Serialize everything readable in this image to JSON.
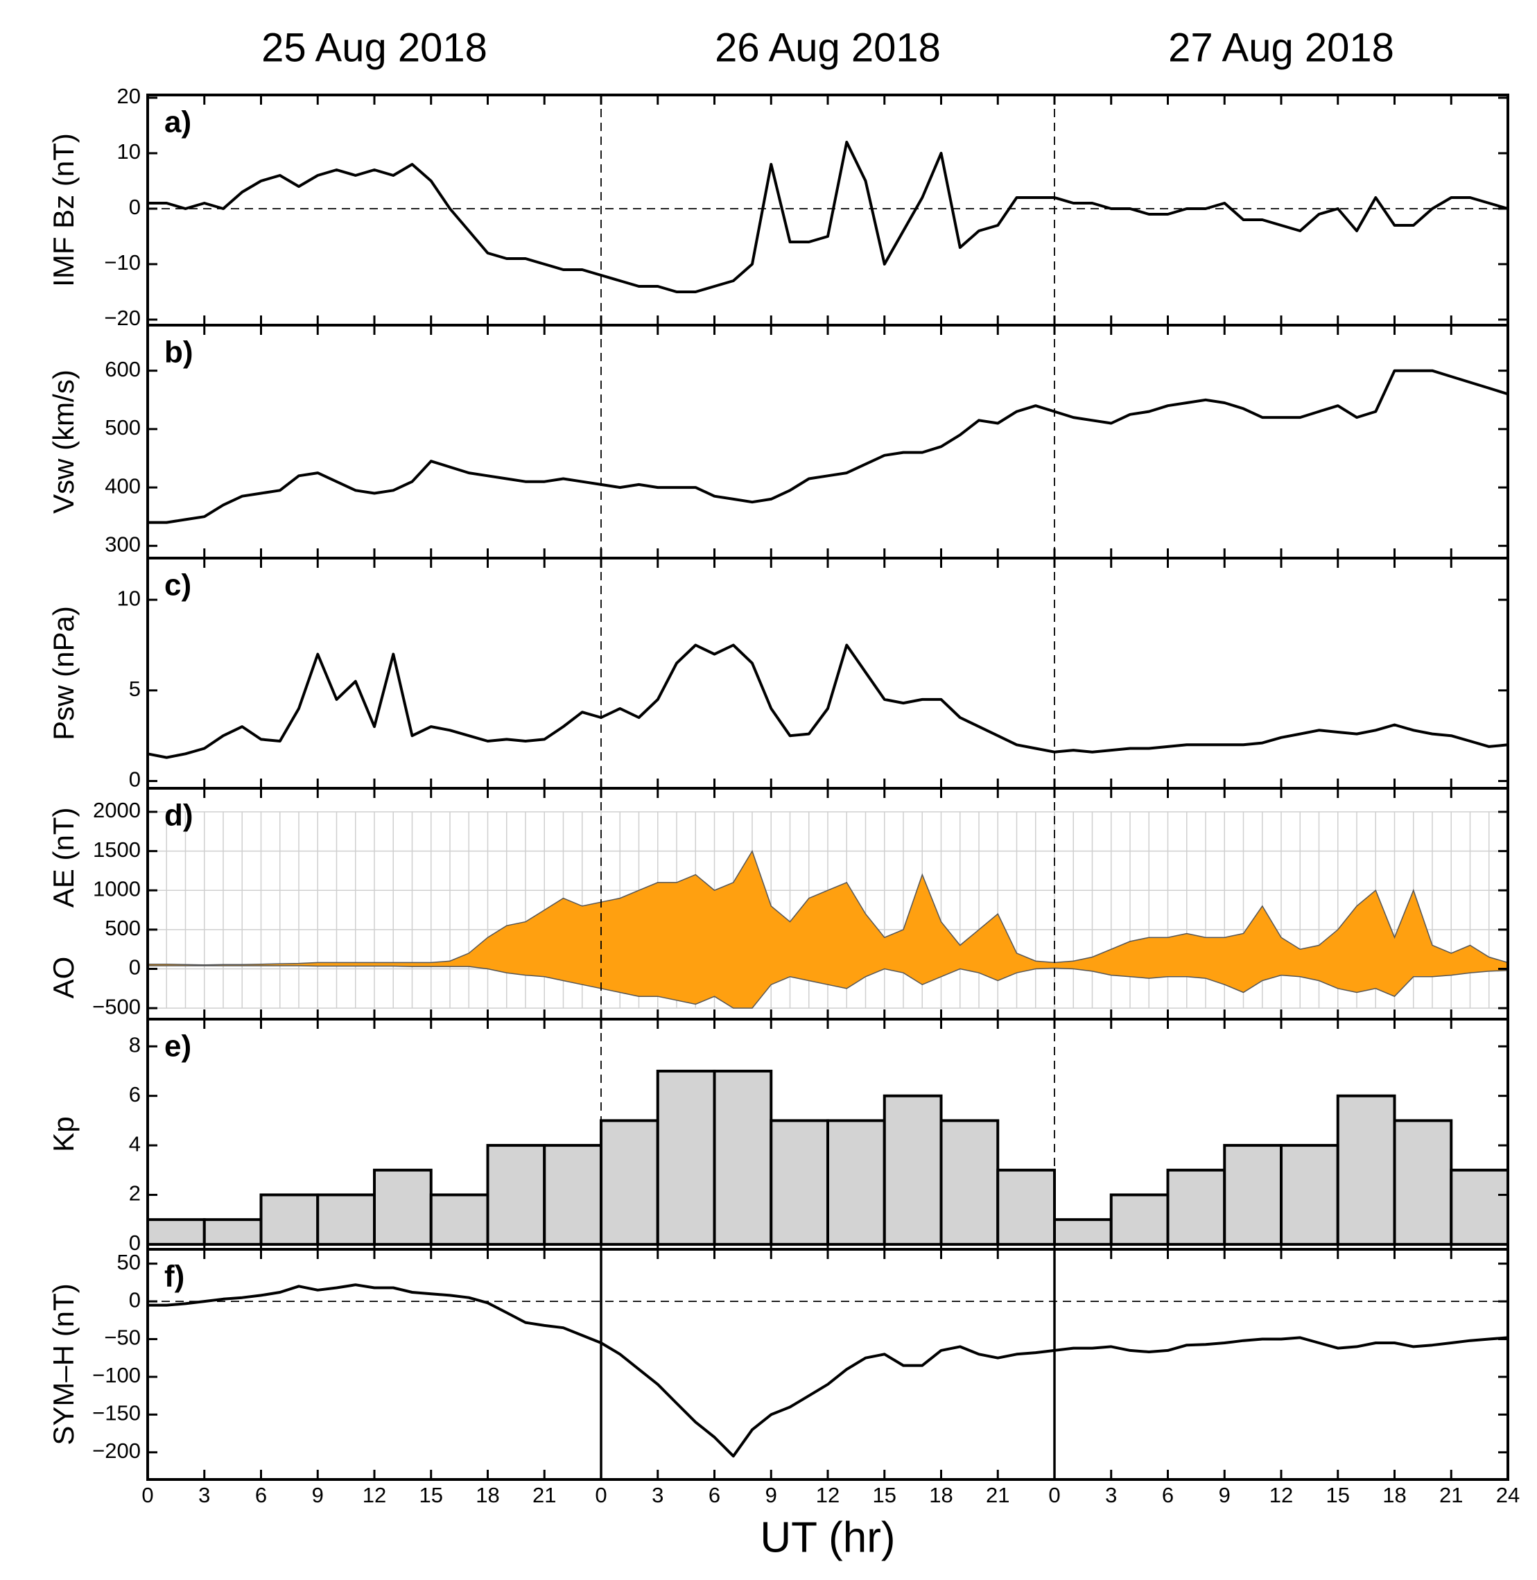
{
  "dates": [
    {
      "text": "25 Aug 2018",
      "x": 12
    },
    {
      "text": "26 Aug 2018",
      "x": 36
    },
    {
      "text": "27 Aug 2018",
      "x": 60
    }
  ],
  "xaxis": {
    "label": "UT (hr)",
    "xlim": [
      0,
      72
    ],
    "x": [
      0,
      1,
      2,
      3,
      4,
      5,
      6,
      7,
      8,
      9,
      10,
      11,
      12,
      13,
      14,
      15,
      16,
      17,
      18,
      19,
      20,
      21,
      22,
      23,
      24,
      25,
      26,
      27,
      28,
      29,
      30,
      31,
      32,
      33,
      34,
      35,
      36,
      37,
      38,
      39,
      40,
      41,
      42,
      43,
      44,
      45,
      46,
      47,
      48,
      49,
      50,
      51,
      52,
      53,
      54,
      55,
      56,
      57,
      58,
      59,
      60,
      61,
      62,
      63,
      64,
      65,
      66,
      67,
      68,
      69,
      70,
      71,
      72
    ],
    "xticks": [
      0,
      3,
      6,
      9,
      12,
      15,
      18,
      21,
      {
        "value": 24,
        "label": "0"
      },
      {
        "value": 27,
        "label": "3"
      },
      {
        "value": 30,
        "label": "6"
      },
      {
        "value": 33,
        "label": "9"
      },
      {
        "value": 36,
        "label": "12"
      },
      {
        "value": 39,
        "label": "15"
      },
      {
        "value": 42,
        "label": "18"
      },
      {
        "value": 45,
        "label": "21"
      },
      {
        "value": 48,
        "label": "0"
      },
      {
        "value": 51,
        "label": "3"
      },
      {
        "value": 54,
        "label": "6"
      },
      {
        "value": 57,
        "label": "9"
      },
      {
        "value": 60,
        "label": "12"
      },
      {
        "value": 63,
        "label": "15"
      },
      {
        "value": 66,
        "label": "18"
      },
      {
        "value": 69,
        "label": "21"
      },
      {
        "value": 72,
        "label": "24"
      }
    ],
    "day_boundaries": [
      24,
      48
    ]
  },
  "chart_data": [
    {
      "type": "line",
      "panel_label": "a)",
      "ylabels": [
        "IMF Bz (nT)"
      ],
      "color": "#000000",
      "ylim": [
        -21,
        20.5
      ],
      "yticks": [
        {
          "value": -20,
          "label": "−20"
        },
        {
          "value": -10,
          "label": "−10"
        },
        0,
        10,
        20
      ],
      "hline": 0,
      "boundary_style": "dashed",
      "values": [
        1,
        1,
        0,
        1,
        0,
        3,
        5,
        6,
        4,
        6,
        7,
        6,
        7,
        6,
        8,
        5,
        0,
        -4,
        -8,
        -9,
        -9,
        -10,
        -11,
        -11,
        -12,
        -13,
        -14,
        -14,
        -15,
        -15,
        -14,
        -13,
        -10,
        8,
        -6,
        -6,
        -5,
        12,
        5,
        -10,
        -4,
        2,
        10,
        -7,
        -4,
        -3,
        2,
        2,
        2,
        1,
        1,
        0,
        0,
        -1,
        -1,
        0,
        0,
        1,
        -2,
        -2,
        -3,
        -4,
        -1,
        0,
        -4,
        2,
        -3,
        -3,
        0,
        2,
        2,
        1,
        0
      ]
    },
    {
      "type": "line",
      "panel_label": "b)",
      "ylabels": [
        "Vsw (km/s)"
      ],
      "color": "#000000",
      "ylim": [
        279,
        678
      ],
      "yticks": [
        300,
        400,
        500,
        600
      ],
      "boundary_style": "dashed",
      "values": [
        340,
        340,
        345,
        350,
        370,
        385,
        390,
        395,
        420,
        425,
        410,
        395,
        390,
        395,
        410,
        445,
        435,
        425,
        420,
        415,
        410,
        410,
        415,
        410,
        405,
        400,
        405,
        400,
        400,
        400,
        385,
        380,
        375,
        380,
        395,
        415,
        420,
        425,
        440,
        455,
        460,
        460,
        470,
        490,
        515,
        510,
        530,
        540,
        530,
        520,
        515,
        510,
        525,
        530,
        540,
        545,
        550,
        545,
        535,
        520,
        520,
        520,
        530,
        540,
        520,
        530,
        600,
        600,
        600,
        590,
        580,
        570,
        560
      ]
    },
    {
      "type": "line",
      "panel_label": "c)",
      "ylabels": [
        "Psw (nPa)"
      ],
      "color": "#000000",
      "ylim": [
        -0.4,
        12.3
      ],
      "yticks": [
        0,
        5,
        10
      ],
      "boundary_style": "dashed",
      "values": [
        1.5,
        1.3,
        1.5,
        1.8,
        2.5,
        3,
        2.3,
        2.2,
        4,
        7,
        4.5,
        5.5,
        3,
        7,
        2.5,
        3,
        2.8,
        2.5,
        2.2,
        2.3,
        2.2,
        2.3,
        3,
        3.8,
        3.5,
        4,
        3.5,
        4.5,
        6.5,
        7.5,
        7,
        7.5,
        6.5,
        4,
        2.5,
        2.6,
        4,
        7.5,
        6,
        4.5,
        4.3,
        4.5,
        4.5,
        3.5,
        3,
        2.5,
        2,
        1.8,
        1.6,
        1.7,
        1.6,
        1.7,
        1.8,
        1.8,
        1.9,
        2,
        2,
        2,
        2,
        2.1,
        2.4,
        2.6,
        2.8,
        2.7,
        2.6,
        2.8,
        3.1,
        2.8,
        2.6,
        2.5,
        2.2,
        1.9,
        2
      ]
    },
    {
      "type": "area",
      "panel_label": "d)",
      "ylabels": [
        "AE (nT)",
        "AO"
      ],
      "color": "#ffa010",
      "grid": true,
      "ylim": [
        -640,
        2300
      ],
      "yticks": [
        {
          "value": -500,
          "label": "−500"
        },
        0,
        500,
        1000,
        1500,
        2000
      ],
      "boundary_style": "dashed",
      "series": [
        {
          "values": [
            60,
            60,
            55,
            50,
            55,
            55,
            60,
            65,
            70,
            80,
            80,
            80,
            80,
            80,
            80,
            80,
            100,
            200,
            400,
            550,
            600,
            750,
            900,
            800,
            850,
            900,
            1000,
            1100,
            1100,
            1200,
            1000,
            1100,
            1500,
            800,
            600,
            900,
            1000,
            1100,
            700,
            400,
            500,
            1200,
            600,
            300,
            500,
            700,
            200,
            100,
            80,
            100,
            150,
            250,
            350,
            400,
            400,
            450,
            400,
            400,
            450,
            800,
            400,
            250,
            300,
            500,
            800,
            1000,
            400,
            1000,
            300,
            200,
            300,
            150,
            80
          ]
        },
        {
          "values": [
            40,
            40,
            40,
            40,
            40,
            40,
            40,
            40,
            40,
            35,
            35,
            35,
            35,
            35,
            30,
            30,
            30,
            30,
            0,
            -50,
            -80,
            -100,
            -150,
            -200,
            -250,
            -300,
            -350,
            -350,
            -400,
            -450,
            -350,
            -500,
            -500,
            -200,
            -100,
            -150,
            -200,
            -250,
            -100,
            0,
            -50,
            -200,
            -100,
            0,
            -50,
            -150,
            -50,
            0,
            10,
            0,
            -30,
            -80,
            -100,
            -120,
            -100,
            -100,
            -120,
            -200,
            -300,
            -150,
            -80,
            -100,
            -150,
            -250,
            -300,
            -250,
            -350,
            -100,
            -100,
            -80,
            -50,
            -30,
            -20
          ]
        }
      ]
    },
    {
      "type": "histogram",
      "panel_label": "e)",
      "ylabels": [
        "Kp"
      ],
      "color": "#d3d3d3",
      "ylim": [
        -0.2,
        9.1
      ],
      "yticks": [
        0,
        2,
        4,
        6,
        8
      ],
      "boundary_style": "dashed",
      "bins": [
        0,
        3,
        6,
        9,
        12,
        15,
        18,
        21,
        24,
        27,
        30,
        33,
        36,
        39,
        42,
        45,
        48,
        51,
        54,
        57,
        60,
        63,
        66,
        69,
        72
      ],
      "values": [
        1,
        1,
        2,
        2,
        3,
        2,
        4,
        4,
        5,
        7,
        7,
        5,
        5,
        6,
        5,
        3,
        1,
        2,
        3,
        4,
        4,
        6,
        5,
        3
      ]
    },
    {
      "type": "line",
      "panel_label": "f)",
      "ylabels": [
        "SYM–H (nT)"
      ],
      "color": "#000000",
      "ylim": [
        -236,
        69
      ],
      "yticks": [
        50,
        0,
        {
          "value": -50,
          "label": "−50"
        },
        {
          "value": -100,
          "label": "−100"
        },
        {
          "value": -150,
          "label": "−150"
        },
        {
          "value": -200,
          "label": "−200"
        }
      ],
      "hline": 0,
      "boundary_style": "solid",
      "values": [
        -5,
        -5,
        -3,
        0,
        3,
        5,
        8,
        12,
        20,
        15,
        18,
        22,
        18,
        18,
        12,
        10,
        8,
        5,
        -2,
        -15,
        -28,
        -32,
        -35,
        -45,
        -55,
        -70,
        -90,
        -110,
        -135,
        -160,
        -180,
        -205,
        -170,
        -150,
        -140,
        -125,
        -110,
        -90,
        -75,
        -70,
        -85,
        -85,
        -65,
        -60,
        -70,
        -75,
        -70,
        -68,
        -65,
        -62,
        -62,
        -60,
        -65,
        -67,
        -65,
        -58,
        -57,
        -55,
        -52,
        -50,
        -50,
        -48,
        -55,
        -62,
        -60,
        -55,
        -55,
        -60,
        -58,
        -55,
        -52,
        -50,
        -48
      ]
    }
  ]
}
